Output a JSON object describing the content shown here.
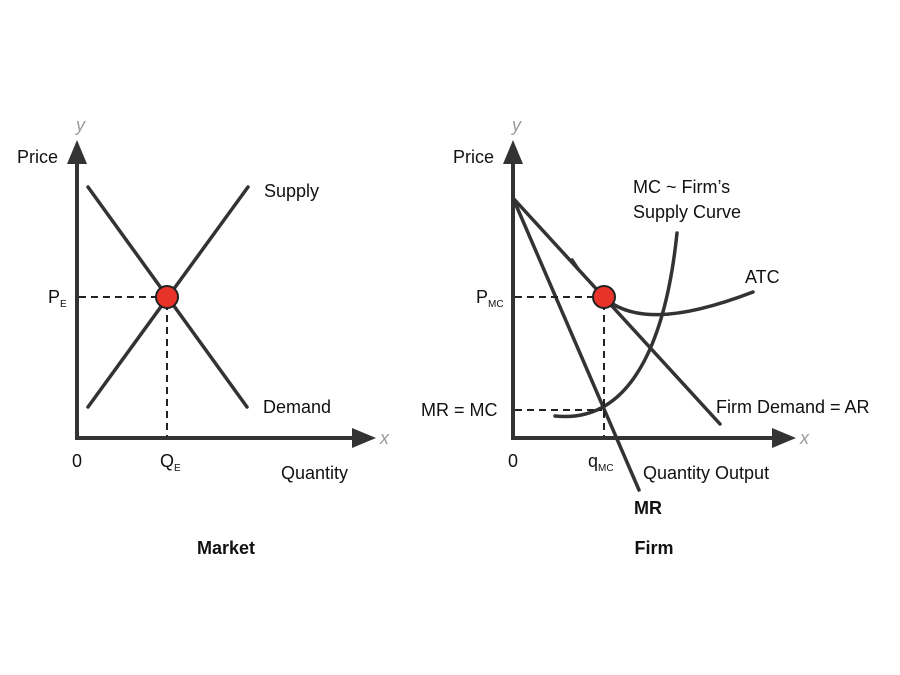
{
  "market": {
    "y_var": "y",
    "x_var": "x",
    "y_axis_label": "Price",
    "x_axis_label": "Quantity",
    "origin_label": "0",
    "price_label": "P",
    "price_sub": "E",
    "quantity_label": "Q",
    "quantity_sub": "E",
    "supply_label": "Supply",
    "demand_label": "Demand",
    "caption": "Market"
  },
  "firm": {
    "y_var": "y",
    "x_var": "x",
    "y_axis_label": "Price",
    "x_axis_label": "Quantity Output",
    "origin_label": "0",
    "price_label": "P",
    "price_sub": "MC",
    "quantity_label": "q",
    "quantity_sub": "MC",
    "mr_mc_label": "MR = MC",
    "mc_label_line1": "MC ~ Firm’s",
    "mc_label_line2": "Supply Curve",
    "atc_label": "ATC",
    "demand_label": "Firm Demand = AR",
    "mr_label": "MR",
    "caption": "Firm"
  },
  "colors": {
    "axis": "#333333",
    "equilibrium_point": "#e8332b",
    "axis_variable": "#9a9a9a"
  }
}
